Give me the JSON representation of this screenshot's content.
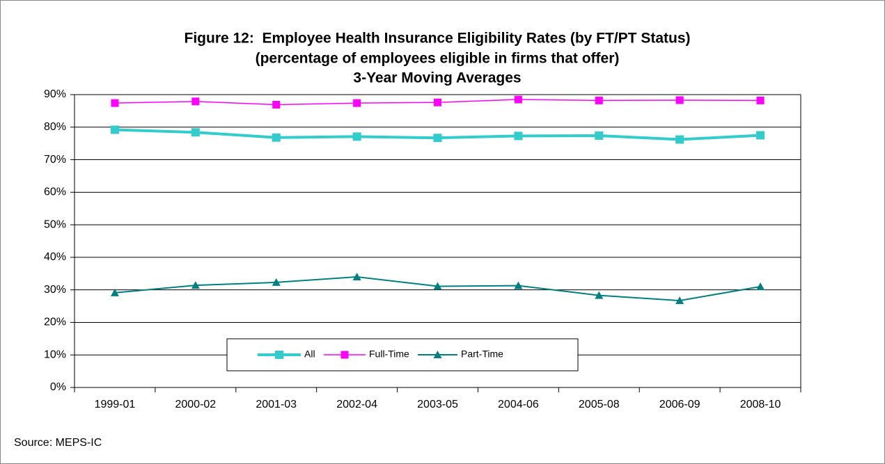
{
  "chart_data": {
    "type": "line",
    "title": [
      "Figure 12:  Employee Health Insurance Eligibility Rates (by FT/PT Status)",
      "(percentage of employees eligible in firms that offer)",
      "3-Year Moving Averages"
    ],
    "categories": [
      "1999-01",
      "2000-02",
      "2001-03",
      "2002-04",
      "2003-05",
      "2004-06",
      "2005-08",
      "2006-09",
      "2008-10"
    ],
    "series": [
      {
        "name": "All",
        "color": "#33cccc",
        "marker": "square",
        "line_width": 4,
        "values": [
          79.2,
          78.4,
          76.8,
          77.1,
          76.7,
          77.3,
          77.4,
          76.2,
          77.5
        ]
      },
      {
        "name": "Full-Time",
        "color": "#ff00ff",
        "marker": "square",
        "line_width": 1.5,
        "values": [
          87.4,
          87.9,
          86.9,
          87.4,
          87.6,
          88.5,
          88.2,
          88.3,
          88.2
        ]
      },
      {
        "name": "Part-Time",
        "color": "#008080",
        "marker": "triangle",
        "line_width": 2,
        "values": [
          29.1,
          31.4,
          32.3,
          34.0,
          31.1,
          31.3,
          28.3,
          26.7,
          31.0
        ]
      }
    ],
    "ylim": [
      0,
      90
    ],
    "yticks": [
      {
        "value": 0,
        "label": "0%"
      },
      {
        "value": 10,
        "label": "10%"
      },
      {
        "value": 20,
        "label": "20%"
      },
      {
        "value": 30,
        "label": "30%"
      },
      {
        "value": 40,
        "label": "40%"
      },
      {
        "value": 50,
        "label": "50%"
      },
      {
        "value": 60,
        "label": "60%"
      },
      {
        "value": 70,
        "label": "70%"
      },
      {
        "value": 80,
        "label": "80%"
      },
      {
        "value": 90,
        "label": "90%"
      }
    ],
    "grid": true,
    "source": "Source: MEPS-IC"
  }
}
